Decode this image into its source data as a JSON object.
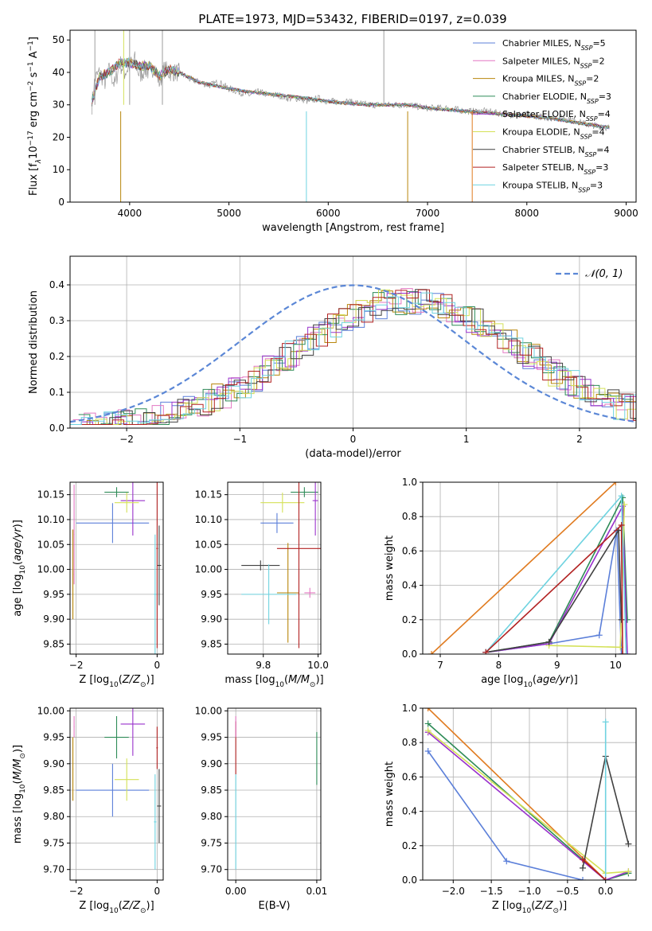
{
  "figure_title": "PLATE=1973, MJD=53432, FIBERID=0197, z=0.039",
  "colors": {
    "Chabrier MILES": "#5b7fd9",
    "Salpeter MILES": "#e377c2",
    "Kroupa MILES": "#b8860b",
    "Chabrier ELODIE": "#2e8b57",
    "Salpeter ELODIE": "#9932cc",
    "Kroupa ELODIE": "#d4e157",
    "Chabrier STELIB": "#404040",
    "Salpeter STELIB": "#b22222",
    "Kroupa STELIB": "#6fd3e0",
    "orange": "#e07b20",
    "gauss": "#5b87d6"
  },
  "chart_data": [
    {
      "type": "line",
      "id": "spectrum",
      "title": "PLATE=1973, MJD=53432, FIBERID=0197, z=0.039",
      "xlabel": "wavelength [Angstrom, rest frame]",
      "ylabel": "Flux [f",
      "xlim": [
        3400,
        9100
      ],
      "ylim": [
        0,
        53
      ],
      "xticks": [
        4000,
        5000,
        6000,
        7000,
        8000,
        9000
      ],
      "yticks": [
        0,
        10,
        20,
        30,
        40,
        50
      ],
      "grid": false,
      "legend": "right",
      "legend_entries": [
        {
          "name": "Chabrier MILES",
          "nssp": "5"
        },
        {
          "name": "Salpeter MILES",
          "nssp": "2"
        },
        {
          "name": "Kroupa MILES",
          "nssp": "2"
        },
        {
          "name": "Chabrier ELODIE",
          "nssp": "3"
        },
        {
          "name": "Salpeter ELODIE",
          "nssp": "4"
        },
        {
          "name": "Kroupa ELODIE",
          "nssp": "4"
        },
        {
          "name": "Chabrier STELIB",
          "nssp": "4"
        },
        {
          "name": "Salpeter STELIB",
          "nssp": "3"
        },
        {
          "name": "Kroupa STELIB",
          "nssp": "3"
        }
      ],
      "data_spectrum": [
        [
          3620,
          30
        ],
        [
          3650,
          38
        ],
        [
          3700,
          40
        ],
        [
          3750,
          37
        ],
        [
          3800,
          41
        ],
        [
          3850,
          36
        ],
        [
          3900,
          43
        ],
        [
          3950,
          40
        ],
        [
          4000,
          42
        ],
        [
          4050,
          44
        ],
        [
          4100,
          39
        ],
        [
          4150,
          41
        ],
        [
          4200,
          40
        ],
        [
          4250,
          42
        ],
        [
          4300,
          37
        ],
        [
          4350,
          41
        ],
        [
          4400,
          40
        ],
        [
          4500,
          40
        ],
        [
          4600,
          38
        ],
        [
          4700,
          37
        ],
        [
          4800,
          36
        ],
        [
          4900,
          37
        ],
        [
          5000,
          35
        ],
        [
          5100,
          34
        ],
        [
          5200,
          33
        ],
        [
          5300,
          34
        ],
        [
          5400,
          33
        ],
        [
          5500,
          33
        ],
        [
          5600,
          32
        ],
        [
          5700,
          32
        ],
        [
          5800,
          31
        ],
        [
          5900,
          32
        ],
        [
          6000,
          31
        ],
        [
          6200,
          31
        ],
        [
          6400,
          30
        ],
        [
          6600,
          30
        ],
        [
          6800,
          30
        ],
        [
          7000,
          29
        ],
        [
          7200,
          29
        ],
        [
          7400,
          28
        ],
        [
          7600,
          28
        ],
        [
          7800,
          27
        ],
        [
          8000,
          27
        ],
        [
          8200,
          26
        ],
        [
          8400,
          26
        ],
        [
          8600,
          24
        ],
        [
          8830,
          23
        ]
      ],
      "model_spectrum": [
        [
          3620,
          31
        ],
        [
          3700,
          39
        ],
        [
          3800,
          40
        ],
        [
          3900,
          43
        ],
        [
          4000,
          43
        ],
        [
          4100,
          42
        ],
        [
          4200,
          42
        ],
        [
          4300,
          39
        ],
        [
          4400,
          41
        ],
        [
          4500,
          40
        ],
        [
          4700,
          37
        ],
        [
          5000,
          35
        ],
        [
          5200,
          34
        ],
        [
          5500,
          33
        ],
        [
          5800,
          32
        ],
        [
          6000,
          31
        ],
        [
          6400,
          30
        ],
        [
          6800,
          30
        ],
        [
          7000,
          29
        ],
        [
          7400,
          28
        ],
        [
          7800,
          27
        ],
        [
          8200,
          26
        ],
        [
          8600,
          24
        ],
        [
          8830,
          23
        ]
      ],
      "spikes": [
        3650,
        3910,
        3940,
        4000,
        4330,
        5780,
        6560,
        6800,
        7450
      ]
    },
    {
      "type": "bar",
      "id": "residuals",
      "xlabel": "(data-model)/error",
      "ylabel": "Normed distribution",
      "xlim": [
        -2.5,
        2.5
      ],
      "ylim": [
        0,
        0.48
      ],
      "xticks": [
        -2,
        -1,
        0,
        1,
        2
      ],
      "yticks": [
        0.0,
        0.1,
        0.2,
        0.3,
        0.4
      ],
      "grid": true,
      "legend": "top-right",
      "legend_label": "𝒩(0, 1)",
      "gauss_mu": 0,
      "gauss_sigma": 1
    },
    {
      "type": "scatter",
      "id": "age-vs-Z",
      "xlabel": "Z [log",
      "ylabel": "age  [log",
      "xlim": [
        -2.15,
        0.15
      ],
      "ylim": [
        9.83,
        10.175
      ],
      "xticks": [
        -2,
        0
      ],
      "yticks": [
        9.85,
        9.9,
        9.95,
        10.0,
        10.05,
        10.1,
        10.15
      ],
      "grid": true,
      "points": [
        {
          "model": "Chabrier MILES",
          "x": -1.1,
          "y": 10.093,
          "xerr": 0.9,
          "yerr": 0.04
        },
        {
          "model": "Salpeter MILES",
          "x": -2.05,
          "y": 10.07,
          "xerr": 0.01,
          "yerr": 0.1
        },
        {
          "model": "Kroupa MILES",
          "x": -2.08,
          "y": 9.99,
          "xerr": 0.01,
          "yerr": 0.09
        },
        {
          "model": "Chabrier ELODIE",
          "x": -1.0,
          "y": 10.155,
          "xerr": 0.3,
          "yerr": 0.01
        },
        {
          "model": "Salpeter ELODIE",
          "x": -0.6,
          "y": 10.138,
          "xerr": 0.3,
          "yerr": 0.07
        },
        {
          "model": "Kroupa ELODIE",
          "x": -0.75,
          "y": 10.134,
          "xerr": 0.3,
          "yerr": 0.02
        },
        {
          "model": "Chabrier STELIB",
          "x": 0.05,
          "y": 10.008,
          "xerr": 0.05,
          "yerr": 0.08
        },
        {
          "model": "Salpeter STELIB",
          "x": 0.0,
          "y": 10.042,
          "xerr": 0.02,
          "yerr": 0.2
        },
        {
          "model": "Kroupa STELIB",
          "x": -0.05,
          "y": 9.95,
          "xerr": 0.03,
          "yerr": 0.12
        }
      ]
    },
    {
      "type": "scatter",
      "id": "age-vs-mass",
      "xlabel": "mass [log",
      "ylabel": "",
      "xlim": [
        9.67,
        10.01
      ],
      "ylim": [
        9.83,
        10.175
      ],
      "xticks": [
        9.8,
        10.0
      ],
      "yticks": [
        9.85,
        9.9,
        9.95,
        10.0,
        10.05,
        10.1,
        10.15
      ],
      "grid": true,
      "points": [
        {
          "model": "Chabrier MILES",
          "x": 9.85,
          "y": 10.093,
          "xerr": 0.06,
          "yerr": 0.02
        },
        {
          "model": "Salpeter MILES",
          "x": 9.97,
          "y": 9.953,
          "xerr": 0.02,
          "yerr": 0.01
        },
        {
          "model": "Kroupa MILES",
          "x": 9.89,
          "y": 9.953,
          "xerr": 0.04,
          "yerr": 0.1
        },
        {
          "model": "Chabrier ELODIE",
          "x": 9.95,
          "y": 10.155,
          "xerr": 0.05,
          "yerr": 0.01
        },
        {
          "model": "Salpeter ELODIE",
          "x": 9.99,
          "y": 10.138,
          "xerr": 0.01,
          "yerr": 0.07
        },
        {
          "model": "Kroupa ELODIE",
          "x": 9.87,
          "y": 10.134,
          "xerr": 0.08,
          "yerr": 0.02
        },
        {
          "model": "Chabrier STELIB",
          "x": 9.79,
          "y": 10.008,
          "xerr": 0.07,
          "yerr": 0.01
        },
        {
          "model": "Salpeter STELIB",
          "x": 9.93,
          "y": 10.042,
          "xerr": 0.08,
          "yerr": 0.2
        },
        {
          "model": "Kroupa STELIB",
          "x": 9.82,
          "y": 9.95,
          "xerr": 0.1,
          "yerr": 0.06
        }
      ]
    },
    {
      "type": "line",
      "id": "mass-weight-vs-age",
      "xlabel": "age  [log",
      "ylabel": "mass weight",
      "xlim": [
        6.7,
        10.35
      ],
      "ylim": [
        0,
        1.0
      ],
      "xticks": [
        7,
        8,
        9,
        10
      ],
      "yticks": [
        0.0,
        0.2,
        0.4,
        0.6,
        0.8,
        1.0
      ],
      "grid": true,
      "series": [
        {
          "model": "Chabrier MILES",
          "points": [
            [
              7.78,
              0.01
            ],
            [
              8.86,
              0.06
            ],
            [
              9.72,
              0.11
            ],
            [
              10.02,
              0.72
            ],
            [
              10.1,
              0.0
            ]
          ]
        },
        {
          "model": "Chabrier ELODIE",
          "points": [
            [
              7.78,
              0.01
            ],
            [
              8.86,
              0.07
            ],
            [
              10.12,
              0.91
            ],
            [
              10.2,
              0.2
            ]
          ]
        },
        {
          "model": "Salpeter ELODIE",
          "points": [
            [
              7.78,
              0.01
            ],
            [
              8.86,
              0.06
            ],
            [
              10.12,
              0.86
            ],
            [
              10.2,
              0.0
            ]
          ]
        },
        {
          "model": "Kroupa ELODIE",
          "points": [
            [
              8.86,
              0.05
            ],
            [
              10.08,
              0.04
            ],
            [
              10.15,
              0.87
            ]
          ]
        },
        {
          "model": "Chabrier STELIB",
          "points": [
            [
              7.78,
              0.01
            ],
            [
              8.86,
              0.07
            ],
            [
              10.05,
              0.72
            ],
            [
              10.1,
              0.2
            ]
          ]
        },
        {
          "model": "Kroupa STELIB",
          "points": [
            [
              7.78,
              0.01
            ],
            [
              10.1,
              0.92
            ],
            [
              10.18,
              0.0
            ]
          ]
        },
        {
          "model": "Salpeter STELIB",
          "points": [
            [
              7.78,
              0.01
            ],
            [
              10.1,
              0.75
            ],
            [
              10.12,
              0.0
            ]
          ]
        },
        {
          "model": "orange",
          "points": [
            [
              6.85,
              0.0
            ],
            [
              10.0,
              1.0
            ]
          ]
        }
      ]
    },
    {
      "type": "scatter",
      "id": "mass-vs-Z",
      "xlabel": "Z [log",
      "ylabel": "mass [log",
      "xlim": [
        -2.15,
        0.15
      ],
      "ylim": [
        9.68,
        10.005
      ],
      "xticks": [
        -2,
        0
      ],
      "yticks": [
        9.7,
        9.75,
        9.8,
        9.85,
        9.9,
        9.95,
        10.0
      ],
      "grid": true,
      "points": [
        {
          "model": "Chabrier MILES",
          "x": -1.1,
          "y": 9.85,
          "xerr": 0.9,
          "yerr": 0.05
        },
        {
          "model": "Salpeter MILES",
          "x": -2.05,
          "y": 9.97,
          "xerr": 0.01,
          "yerr": 0.02
        },
        {
          "model": "Kroupa MILES",
          "x": -2.08,
          "y": 9.89,
          "xerr": 0.01,
          "yerr": 0.06
        },
        {
          "model": "Chabrier ELODIE",
          "x": -1.0,
          "y": 9.95,
          "xerr": 0.3,
          "yerr": 0.04
        },
        {
          "model": "Salpeter ELODIE",
          "x": -0.6,
          "y": 9.975,
          "xerr": 0.3,
          "yerr": 0.06
        },
        {
          "model": "Kroupa ELODIE",
          "x": -0.75,
          "y": 9.87,
          "xerr": 0.3,
          "yerr": 0.04
        },
        {
          "model": "Chabrier STELIB",
          "x": 0.05,
          "y": 9.82,
          "xerr": 0.05,
          "yerr": 0.07
        },
        {
          "model": "Salpeter STELIB",
          "x": 0.0,
          "y": 9.93,
          "xerr": 0.02,
          "yerr": 0.04
        },
        {
          "model": "Kroupa STELIB",
          "x": -0.05,
          "y": 9.79,
          "xerr": 0.03,
          "yerr": 0.09
        }
      ]
    },
    {
      "type": "scatter",
      "id": "mass-vs-ebv",
      "xlabel": "E(B-V)",
      "ylabel": "",
      "xlim": [
        -0.001,
        0.0105
      ],
      "ylim": [
        9.68,
        10.005
      ],
      "xticks": [
        0.0,
        0.01
      ],
      "xtick_labels": [
        "0.00",
        "0.01"
      ],
      "yticks": [
        9.7,
        9.75,
        9.8,
        9.85,
        9.9,
        9.95,
        10.0
      ],
      "grid": true,
      "points": [
        {
          "model": "Salpeter STELIB",
          "x": 0.0,
          "y": 9.93,
          "xerr": 0,
          "yerr": 0.05
        },
        {
          "model": "Salpeter MILES",
          "x": 0.0,
          "y": 9.97,
          "xerr": 0,
          "yerr": 0.02
        },
        {
          "model": "Kroupa STELIB",
          "x": 0.0,
          "y": 9.79,
          "xerr": 0,
          "yerr": 0.09
        },
        {
          "model": "Chabrier ELODIE",
          "x": 0.01,
          "y": 9.91,
          "xerr": 0,
          "yerr": 0.05
        }
      ]
    },
    {
      "type": "line",
      "id": "mass-weight-vs-Z",
      "xlabel": "Z [log",
      "ylabel": "mass weight",
      "xlim": [
        -2.4,
        0.4
      ],
      "ylim": [
        0,
        1.0
      ],
      "xticks": [
        -2.0,
        -1.5,
        -1.0,
        -0.5,
        0.0
      ],
      "xtick_labels": [
        "−2.0",
        "−1.5",
        "−1.0",
        "−0.5",
        "0.0"
      ],
      "yticks": [
        0.0,
        0.2,
        0.4,
        0.6,
        0.8,
        1.0
      ],
      "grid": true,
      "series": [
        {
          "model": "Chabrier MILES",
          "points": [
            [
              -2.33,
              0.75
            ],
            [
              -1.3,
              0.11
            ],
            [
              -0.3,
              0.0
            ]
          ]
        },
        {
          "model": "orange",
          "points": [
            [
              -2.33,
              1.0
            ],
            [
              0.0,
              0.0
            ]
          ]
        },
        {
          "model": "Chabrier ELODIE",
          "points": [
            [
              -2.33,
              0.91
            ],
            [
              0.0,
              0.0
            ],
            [
              0.3,
              0.04
            ]
          ]
        },
        {
          "model": "Salpeter ELODIE",
          "points": [
            [
              -2.33,
              0.86
            ],
            [
              0.0,
              0.0
            ],
            [
              0.3,
              0.05
            ]
          ]
        },
        {
          "model": "Kroupa ELODIE",
          "points": [
            [
              -2.33,
              0.87
            ],
            [
              0.0,
              0.04
            ],
            [
              0.3,
              0.05
            ]
          ]
        },
        {
          "model": "Chabrier STELIB",
          "points": [
            [
              -0.3,
              0.07
            ],
            [
              0.0,
              0.72
            ],
            [
              0.3,
              0.21
            ]
          ]
        },
        {
          "model": "Kroupa STELIB",
          "points": [
            [
              0.0,
              0.92
            ],
            [
              0.0,
              0.0
            ]
          ]
        },
        {
          "model": "Salpeter STELIB",
          "points": [
            [
              -0.3,
              0.12
            ],
            [
              0.0,
              0.0
            ]
          ]
        }
      ]
    }
  ]
}
